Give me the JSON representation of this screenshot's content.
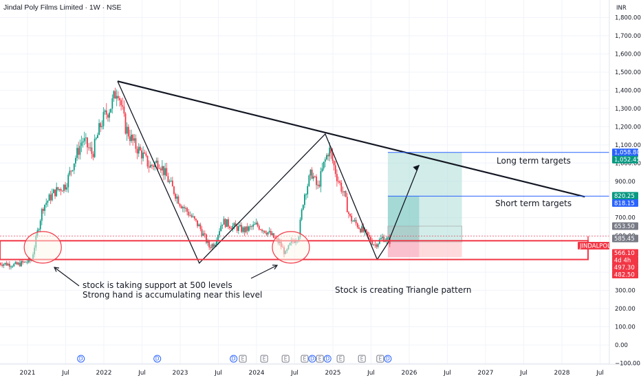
{
  "header": {
    "title": "Jindal Poly Films Limited · 1W · NSE",
    "currency": "INR"
  },
  "chart_data": {
    "type": "candlestick",
    "title": "Jindal Poly Films Limited · 1W · NSE",
    "ylabel": "INR",
    "ylim": [
      -100,
      1880
    ],
    "y_ticks": [
      "1,800.00",
      "1,700.00",
      "1,600.00",
      "1,500.00",
      "1,400.00",
      "1,300.00",
      "1,200.00",
      "1,100.00",
      "1,000.00",
      "900.00",
      "700.00",
      "600.00",
      "400.00",
      "300.00",
      "200.00",
      "100.00",
      "0.00",
      "−100.00"
    ],
    "y_tick_values": [
      1800,
      1700,
      1600,
      1500,
      1400,
      1300,
      1200,
      1100,
      1000,
      900,
      700,
      600,
      400,
      300,
      200,
      100,
      0,
      -100
    ],
    "x_ticks": [
      {
        "label": "2021",
        "t": 2021.0
      },
      {
        "label": "Jul",
        "t": 2021.5
      },
      {
        "label": "2022",
        "t": 2022.0
      },
      {
        "label": "Jul",
        "t": 2022.5
      },
      {
        "label": "2023",
        "t": 2023.0
      },
      {
        "label": "Jul",
        "t": 2023.5
      },
      {
        "label": "2024",
        "t": 2024.0
      },
      {
        "label": "Jul",
        "t": 2024.5
      },
      {
        "label": "2025",
        "t": 2025.0
      },
      {
        "label": "Jul",
        "t": 2025.5
      },
      {
        "label": "2026",
        "t": 2026.0
      },
      {
        "label": "Jul",
        "t": 2026.5
      },
      {
        "label": "2027",
        "t": 2027.0
      },
      {
        "label": "Jul",
        "t": 2027.5
      },
      {
        "label": "2028",
        "t": 2028.0
      },
      {
        "label": "Jul",
        "t": 2028.5
      }
    ],
    "x_range": [
      2020.63,
      2028.86
    ],
    "price_path": [
      [
        2020.63,
        450
      ],
      [
        2020.85,
        440
      ],
      [
        2021.05,
        465
      ],
      [
        2021.1,
        560
      ],
      [
        2021.2,
        760
      ],
      [
        2021.35,
        840
      ],
      [
        2021.5,
        880
      ],
      [
        2021.6,
        1000
      ],
      [
        2021.72,
        1130
      ],
      [
        2021.85,
        1050
      ],
      [
        2021.95,
        1200
      ],
      [
        2022.0,
        1250
      ],
      [
        2022.1,
        1320
      ],
      [
        2022.18,
        1420
      ],
      [
        2022.28,
        1200
      ],
      [
        2022.4,
        1100
      ],
      [
        2022.5,
        1050
      ],
      [
        2022.6,
        980
      ],
      [
        2022.72,
        1010
      ],
      [
        2022.85,
        900
      ],
      [
        2023.0,
        780
      ],
      [
        2023.12,
        720
      ],
      [
        2023.25,
        650
      ],
      [
        2023.38,
        540
      ],
      [
        2023.45,
        560
      ],
      [
        2023.55,
        680
      ],
      [
        2023.7,
        650
      ],
      [
        2023.85,
        630
      ],
      [
        2024.0,
        660
      ],
      [
        2024.15,
        620
      ],
      [
        2024.3,
        560
      ],
      [
        2024.38,
        500
      ],
      [
        2024.45,
        560
      ],
      [
        2024.55,
        600
      ],
      [
        2024.62,
        820
      ],
      [
        2024.72,
        950
      ],
      [
        2024.8,
        860
      ],
      [
        2024.88,
        990
      ],
      [
        2024.95,
        1080
      ],
      [
        2025.05,
        930
      ],
      [
        2025.15,
        820
      ],
      [
        2025.22,
        700
      ],
      [
        2025.32,
        660
      ],
      [
        2025.45,
        600
      ],
      [
        2025.55,
        550
      ],
      [
        2025.65,
        590
      ],
      [
        2025.75,
        570
      ]
    ],
    "lines": [
      {
        "name": "triangle-top",
        "points": [
          [
            2022.18,
            1450
          ],
          [
            2028.3,
            815
          ]
        ]
      },
      {
        "name": "zigzag",
        "points": [
          [
            2022.18,
            1450
          ],
          [
            2023.25,
            450
          ],
          [
            2024.9,
            1160
          ],
          [
            2025.58,
            470
          ],
          [
            2025.72,
            560
          ],
          [
            2026.13,
            990
          ]
        ]
      },
      {
        "name": "long-term-target",
        "y": 1058.8,
        "from": 2025.72,
        "to": 2028.86
      },
      {
        "name": "short-term-target",
        "y": 818.15,
        "from": 2025.72,
        "to": 2028.86
      },
      {
        "name": "support-top",
        "y": 573
      },
      {
        "name": "support-bottom",
        "y": 470
      }
    ],
    "price_labels": [
      {
        "text": "1,058.80",
        "y": 1058.8,
        "color": "#2962ff"
      },
      {
        "text": "1,052.45",
        "y": 1052.45,
        "color": "#089981"
      },
      {
        "text": "820.25",
        "y": 820.25,
        "color": "#089981"
      },
      {
        "text": "818.15",
        "y": 818.15,
        "color": "#2962ff"
      },
      {
        "text": "653.50",
        "y": 653.5,
        "color": "#787b86"
      },
      {
        "text": "585.45",
        "y": 585.45,
        "color": "#787b86"
      },
      {
        "text": "JINDALPOLY",
        "y": 598,
        "color": "#f23645"
      },
      {
        "text": "566.10",
        "y": 566.1,
        "color": "#f23645"
      },
      {
        "text": "4d 4h",
        "y": 541,
        "color": "#f23645"
      },
      {
        "text": "497.30",
        "y": 497.3,
        "color": "#f23645"
      },
      {
        "text": "482.50",
        "y": 482.5,
        "color": "#f23645"
      }
    ],
    "annotations": [
      {
        "text": "Long term targets"
      },
      {
        "text": "Short term targets"
      },
      {
        "text": "stock is taking support at 500 levels"
      },
      {
        "text": "Strong hand is accumulating near this level"
      },
      {
        "text": "Stock is creating Triangle pattern"
      }
    ],
    "events": [
      {
        "t": 2021.7,
        "k": "D",
        "c": "#2962ff"
      },
      {
        "t": 2022.7,
        "k": "D",
        "c": "#2962ff"
      },
      {
        "t": 2023.7,
        "k": "D",
        "c": "#2962ff"
      },
      {
        "t": 2023.82,
        "k": "E",
        "c": "#787b86"
      },
      {
        "t": 2024.1,
        "k": "E",
        "c": "#787b86"
      },
      {
        "t": 2024.38,
        "k": "E",
        "c": "#787b86"
      },
      {
        "t": 2024.63,
        "k": "E",
        "c": "#787b86"
      },
      {
        "t": 2024.73,
        "k": "D",
        "c": "#2962ff"
      },
      {
        "t": 2024.83,
        "k": "E",
        "c": "#787b86"
      },
      {
        "t": 2024.93,
        "k": "D",
        "c": "#2962ff"
      },
      {
        "t": 2025.1,
        "k": "E",
        "c": "#787b86"
      },
      {
        "t": 2025.38,
        "k": "E",
        "c": "#787b86"
      },
      {
        "t": 2025.62,
        "k": "E",
        "c": "#787b86"
      },
      {
        "t": 2025.72,
        "k": "D",
        "c": "#2962ff"
      }
    ],
    "colors": {
      "up": "#089981",
      "down": "#f23645",
      "line": "#131722",
      "target": "#2962ff",
      "profit": "#b2dfdb",
      "loss": "#ffcdd2"
    }
  }
}
